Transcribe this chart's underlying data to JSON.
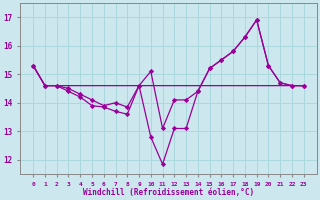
{
  "xlabel": "Windchill (Refroidissement éolien,°C)",
  "background_color": "#cce8ee",
  "line_color": "#990099",
  "grid_color": "#aad8dd",
  "x_hours": [
    0,
    1,
    2,
    3,
    4,
    5,
    6,
    7,
    8,
    9,
    10,
    11,
    12,
    13,
    14,
    15,
    16,
    17,
    18,
    19,
    20,
    21,
    22,
    23
  ],
  "temp_values": [
    15.3,
    14.6,
    14.6,
    14.5,
    14.3,
    14.1,
    13.9,
    14.0,
    13.85,
    14.6,
    15.1,
    13.1,
    14.1,
    14.1,
    14.4,
    15.2,
    15.5,
    15.8,
    16.3,
    16.9,
    15.3,
    14.7,
    14.6,
    14.6
  ],
  "windchill_values": [
    15.3,
    14.6,
    14.6,
    14.4,
    14.2,
    13.9,
    13.85,
    13.7,
    13.6,
    14.6,
    12.8,
    11.85,
    13.1,
    13.1,
    14.4,
    15.2,
    15.5,
    15.8,
    16.3,
    16.9,
    15.3,
    14.7,
    14.6,
    14.6
  ],
  "ref_values": [
    15.3,
    14.6,
    14.6,
    14.6,
    14.6,
    14.6,
    14.6,
    14.6,
    14.6,
    14.6,
    14.6,
    14.6,
    14.6,
    14.6,
    14.6,
    14.6,
    14.6,
    14.6,
    14.6,
    14.6,
    14.6,
    14.6,
    14.6,
    14.6
  ],
  "ylim": [
    11.5,
    17.5
  ],
  "yticks": [
    12,
    13,
    14,
    15,
    16,
    17
  ],
  "xticks": [
    0,
    1,
    2,
    3,
    4,
    5,
    6,
    7,
    8,
    9,
    10,
    11,
    12,
    13,
    14,
    15,
    16,
    17,
    18,
    19,
    20,
    21,
    22,
    23
  ],
  "marker": "D",
  "markersize": 2.2,
  "linewidth": 0.9
}
